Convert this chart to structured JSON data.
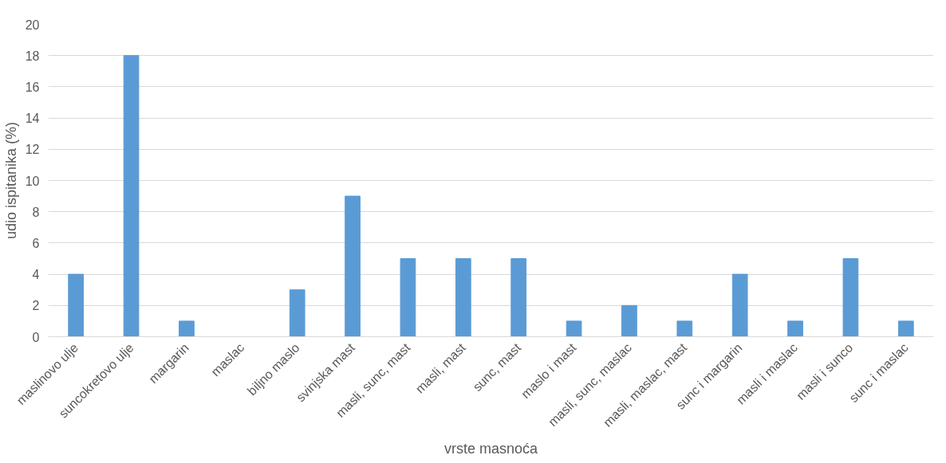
{
  "chart_data": {
    "type": "bar",
    "xlabel": "vrste masnoća",
    "ylabel": "udio ispitanika (%)",
    "categories": [
      "maslinovo ulje",
      "suncokretovo ulje",
      "margarin",
      "maslac",
      "biljno maslo",
      "svinjska mast",
      "masli, sunc, mast",
      "masli, mast",
      "sunc, mast",
      "maslo i mast",
      "masli, sunc, maslac",
      "masli, maslac, mast",
      "sunc i margarin",
      "masli i maslac",
      "masli i sunco",
      "sunc i maslac"
    ],
    "values": [
      4,
      18,
      1,
      0,
      3,
      9,
      5,
      5,
      5,
      1,
      2,
      1,
      4,
      1,
      5,
      1
    ],
    "color": "#5b9bd5",
    "ylim": [
      0,
      20
    ],
    "yticks": [
      0,
      2,
      4,
      6,
      8,
      10,
      12,
      14,
      16,
      18,
      20
    ],
    "grid": "y"
  }
}
